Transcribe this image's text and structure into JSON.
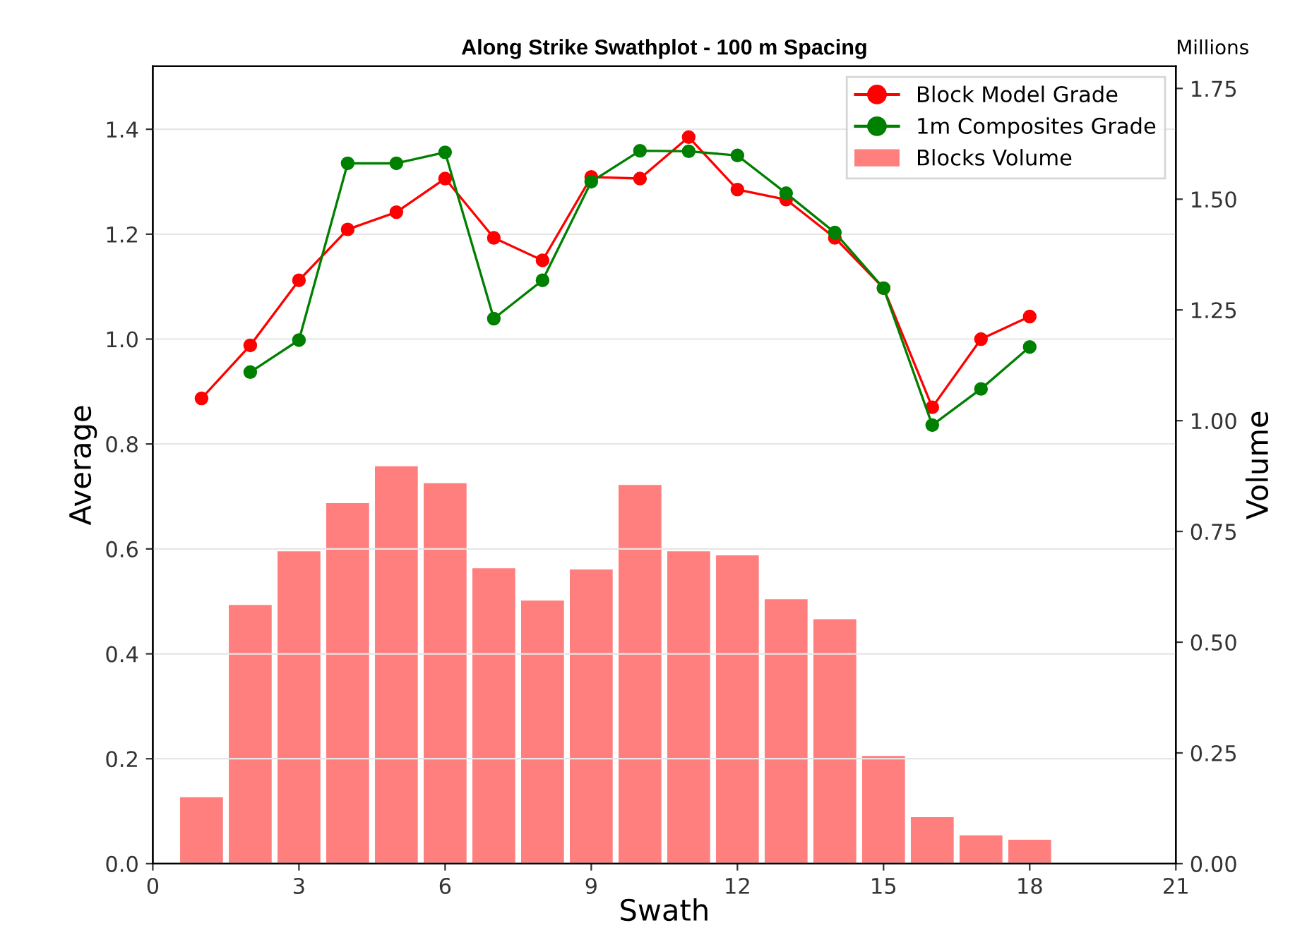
{
  "chart_data": {
    "type": "line",
    "title": "Along Strike Swathplot - 100 m Spacing",
    "xlabel": "Swath",
    "ylabel": "Average",
    "y2label": "Volume",
    "annotations": [
      "Millions"
    ],
    "xlim": [
      0,
      21
    ],
    "xticks": [
      0,
      3,
      6,
      9,
      12,
      15,
      18,
      21
    ],
    "ylim": [
      0,
      1.52
    ],
    "yticks": [
      {
        "value": 0,
        "label": "0.0"
      },
      {
        "value": 0.2,
        "label": "0.2"
      },
      {
        "value": 0.4,
        "label": "0.4"
      },
      {
        "value": 0.6,
        "label": "0.6"
      },
      {
        "value": 0.8,
        "label": "0.8"
      },
      {
        "value": 1.0,
        "label": "1.0"
      },
      {
        "value": 1.2,
        "label": "1.2"
      },
      {
        "value": 1.4,
        "label": "1.4"
      }
    ],
    "y2lim": [
      0,
      1.8
    ],
    "y2ticks": [
      {
        "value": 0,
        "label": "0.00"
      },
      {
        "value": 0.25,
        "label": "0.25"
      },
      {
        "value": 0.5,
        "label": "0.50"
      },
      {
        "value": 0.75,
        "label": "0.75"
      },
      {
        "value": 1.0,
        "label": "1.00"
      },
      {
        "value": 1.25,
        "label": "1.25"
      },
      {
        "value": 1.5,
        "label": "1.50"
      },
      {
        "value": 1.75,
        "label": "1.75"
      }
    ],
    "grid": "y",
    "legend": "top right",
    "marker": "circle",
    "series": [
      {
        "name": "Block Model Grade",
        "color": "#ff0000",
        "x": [
          1,
          2,
          3,
          4,
          5,
          6,
          7,
          8,
          9,
          10,
          11,
          12,
          13,
          14,
          15,
          16,
          17,
          18
        ],
        "values": [
          0.887,
          0.988,
          1.112,
          1.209,
          1.242,
          1.306,
          1.193,
          1.15,
          1.309,
          1.306,
          1.385,
          1.285,
          1.266,
          1.193,
          1.097,
          0.87,
          1.0,
          1.043
        ]
      },
      {
        "name": "1m Composites Grade",
        "color": "#008000",
        "x": [
          2,
          3,
          4,
          5,
          6,
          7,
          8,
          9,
          10,
          11,
          12,
          13,
          14,
          15,
          16,
          17,
          18
        ],
        "values": [
          0.937,
          0.998,
          1.335,
          1.335,
          1.356,
          1.039,
          1.112,
          1.3,
          1.359,
          1.358,
          1.35,
          1.278,
          1.203,
          1.097,
          0.836,
          0.905,
          0.985
        ]
      },
      {
        "name": "Blocks Volume",
        "type": "bar",
        "axis": "y2",
        "color": "#ff7f7f",
        "x": [
          1,
          2,
          3,
          4,
          5,
          6,
          7,
          8,
          9,
          10,
          11,
          12,
          13,
          14,
          15,
          16,
          17,
          18
        ],
        "values": [
          0.15,
          0.584,
          0.705,
          0.814,
          0.897,
          0.859,
          0.667,
          0.594,
          0.664,
          0.855,
          0.705,
          0.696,
          0.597,
          0.552,
          0.243,
          0.105,
          0.064,
          0.054
        ]
      }
    ]
  }
}
